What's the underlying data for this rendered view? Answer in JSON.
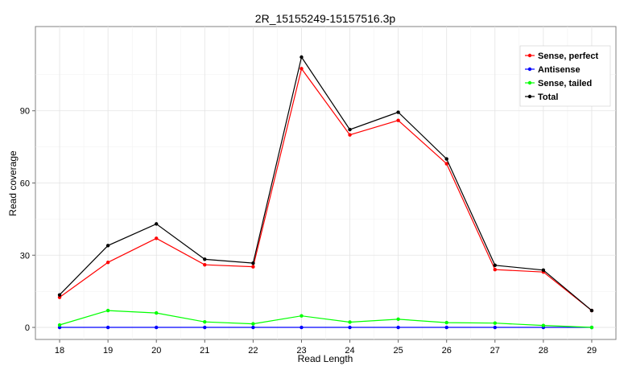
{
  "chart_data": {
    "type": "line",
    "title": "2R_15155249-15157516.3p",
    "xlabel": "Read Length",
    "ylabel": "Read coverage",
    "x": [
      18,
      19,
      20,
      21,
      22,
      23,
      24,
      25,
      26,
      27,
      28,
      29
    ],
    "xlim": [
      17.5,
      29.5
    ],
    "ylim": [
      -5,
      125
    ],
    "yticks": [
      0,
      30,
      60,
      90
    ],
    "grid": true,
    "legend_position": "top-right",
    "series": [
      {
        "name": "Sense, perfect",
        "color": "#ff0000",
        "values": [
          12.5,
          27.0,
          37.0,
          26.0,
          25.2,
          107.5,
          80.0,
          86.0,
          68.0,
          24.0,
          23.0,
          7.0
        ]
      },
      {
        "name": "Antisense",
        "color": "#0000ff",
        "values": [
          0,
          0,
          0,
          0,
          0,
          0,
          0,
          0,
          0,
          0,
          0,
          0
        ]
      },
      {
        "name": "Sense, tailed",
        "color": "#00ff00",
        "values": [
          1.0,
          7.0,
          6.0,
          2.3,
          1.5,
          4.8,
          2.2,
          3.4,
          2.0,
          1.8,
          0.8,
          0
        ]
      },
      {
        "name": "Total",
        "color": "#000000",
        "values": [
          13.5,
          34.0,
          43.0,
          28.3,
          26.7,
          112.3,
          82.2,
          89.4,
          70.0,
          25.8,
          23.8,
          7.0
        ]
      }
    ]
  }
}
